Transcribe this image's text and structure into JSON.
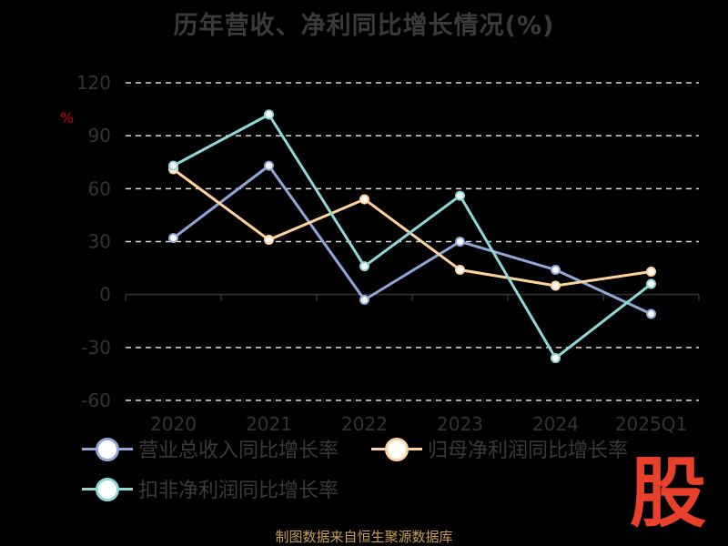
{
  "title": "历年营收、净利同比增长情况(%)",
  "source": "制图数据来自恒生聚源数据库",
  "logo_text": "股",
  "chart_data": {
    "type": "line",
    "title": "历年营收、净利同比增长情况(%)",
    "ylabel": "%",
    "ylim": [
      -60,
      120
    ],
    "yticks": [
      120,
      90,
      60,
      30,
      0,
      -30,
      -60
    ],
    "grid": true,
    "legend_position": "bottom",
    "categories": [
      "2020",
      "2021",
      "2022",
      "2023",
      "2024",
      "2025Q1"
    ],
    "series": [
      {
        "name": "营业总收入同比增长率",
        "color": "#8fa8d8",
        "values": [
          32,
          73,
          -3,
          30,
          14,
          -11
        ]
      },
      {
        "name": "归母净利润同比增长率",
        "color": "#ffd49a",
        "values": [
          71,
          31,
          54,
          14,
          5,
          13
        ]
      },
      {
        "name": "扣非净利润同比增长率",
        "color": "#8fd8d8",
        "values": [
          73,
          102,
          16,
          56,
          -36,
          6
        ]
      }
    ]
  }
}
